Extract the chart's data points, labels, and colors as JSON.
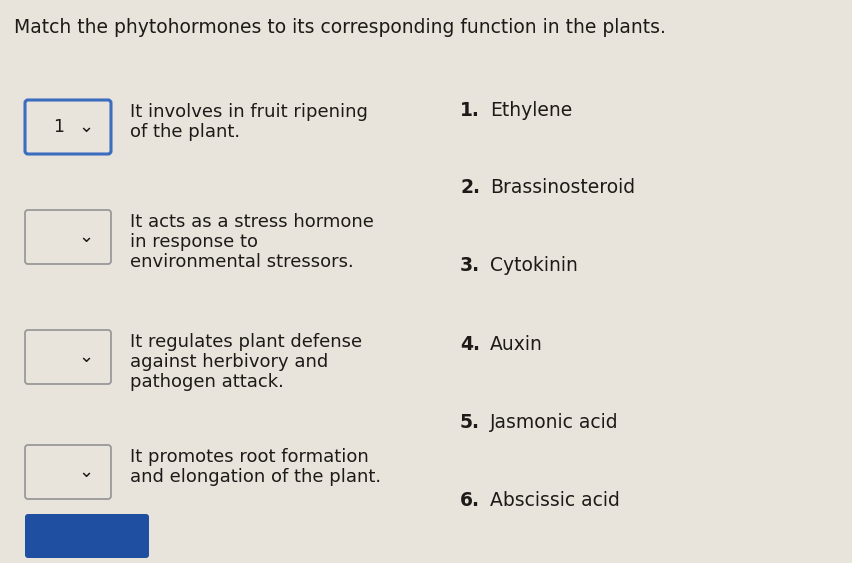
{
  "title": "Match the phytohormones to its corresponding function in the plants.",
  "title_fontsize": 13.5,
  "background_color": "#e8e4dc",
  "left_items": [
    {
      "lines": [
        "It involves in fruit ripening",
        "of the plant."
      ],
      "box_label": "1",
      "box_selected": true
    },
    {
      "lines": [
        "It acts as a stress hormone",
        "in response to",
        "environmental stressors."
      ],
      "box_label": "",
      "box_selected": false
    },
    {
      "lines": [
        "It regulates plant defense",
        "against herbivory and",
        "pathogen attack."
      ],
      "box_label": "",
      "box_selected": false
    },
    {
      "lines": [
        "It promotes root formation",
        "and elongation of the plant."
      ],
      "box_label": "",
      "box_selected": false
    }
  ],
  "right_items": [
    {
      "num": "1.",
      "text": "Ethylene"
    },
    {
      "num": "2.",
      "text": "Brassinosteroid"
    },
    {
      "num": "3.",
      "text": "Cytokinin"
    },
    {
      "num": "4.",
      "text": "Auxin"
    },
    {
      "num": "5.",
      "text": "Jasmonic acid"
    },
    {
      "num": "6.",
      "text": "Abscissic acid"
    }
  ],
  "text_color": "#1e1a17",
  "box_border_color_selected": "#3a6cbf",
  "box_border_color_normal": "#999999",
  "box_fill_color": "#e8e4dc",
  "button_color": "#1e4fa0",
  "font_size_body": 13,
  "font_size_right": 13.5
}
